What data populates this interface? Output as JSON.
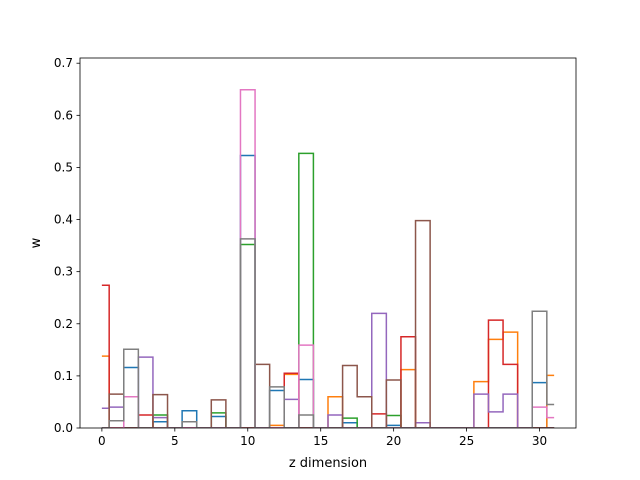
{
  "chart_data": {
    "type": "line",
    "drawstyle": "steps-mid",
    "title": "",
    "xlabel": "z dimension",
    "ylabel": "w",
    "xlim": [
      -1.5,
      32.5
    ],
    "ylim": [
      0,
      0.71
    ],
    "xticks": [
      0,
      5,
      10,
      15,
      20,
      25,
      30
    ],
    "yticks": [
      0.0,
      0.1,
      0.2,
      0.3,
      0.4,
      0.5,
      0.6,
      0.7
    ],
    "x": [
      0,
      1,
      2,
      3,
      4,
      5,
      6,
      7,
      8,
      9,
      10,
      11,
      12,
      13,
      14,
      15,
      16,
      17,
      18,
      19,
      20,
      21,
      22,
      23,
      24,
      25,
      26,
      27,
      28,
      29,
      30,
      31
    ],
    "series": [
      {
        "color": "#1f77b4",
        "values": [
          0.0,
          0.0,
          0.116,
          0.0,
          0.012,
          0.0,
          0.033,
          0.0,
          0.022,
          0.0,
          0.523,
          0.0,
          0.072,
          0.0,
          0.093,
          0.0,
          0.0,
          0.01,
          0.0,
          0.0,
          0.005,
          0.0,
          0.0,
          0.0,
          0.0,
          0.0,
          0.0,
          0.0,
          0.0,
          0.0,
          0.087,
          0.0
        ]
      },
      {
        "color": "#ff7f0e",
        "values": [
          0.138,
          0.0,
          0.0,
          0.0,
          0.0,
          0.0,
          0.0,
          0.0,
          0.0,
          0.0,
          0.0,
          0.0,
          0.005,
          0.103,
          0.0,
          0.0,
          0.06,
          0.0,
          0.0,
          0.0,
          0.0,
          0.112,
          0.0,
          0.0,
          0.0,
          0.0,
          0.089,
          0.17,
          0.184,
          0.0,
          0.0,
          0.101
        ]
      },
      {
        "color": "#2ca02c",
        "values": [
          0.0,
          0.0,
          0.0,
          0.0,
          0.025,
          0.0,
          0.0,
          0.0,
          0.029,
          0.0,
          0.352,
          0.0,
          0.0,
          0.0,
          0.527,
          0.0,
          0.0,
          0.019,
          0.0,
          0.0,
          0.024,
          0.0,
          0.0,
          0.0,
          0.0,
          0.0,
          0.0,
          0.0,
          0.0,
          0.0,
          0.0,
          0.0
        ]
      },
      {
        "color": "#d62728",
        "values": [
          0.274,
          0.0,
          0.0,
          0.025,
          0.0,
          0.0,
          0.0,
          0.0,
          0.0,
          0.0,
          0.0,
          0.0,
          0.0,
          0.105,
          0.0,
          0.0,
          0.0,
          0.0,
          0.0,
          0.027,
          0.0,
          0.175,
          0.0,
          0.0,
          0.0,
          0.0,
          0.0,
          0.207,
          0.122,
          0.0,
          0.0,
          0.0
        ]
      },
      {
        "color": "#9467bd",
        "values": [
          0.038,
          0.04,
          0.0,
          0.136,
          0.02,
          0.0,
          0.0,
          0.0,
          0.0,
          0.0,
          0.0,
          0.0,
          0.0,
          0.055,
          0.0,
          0.0,
          0.025,
          0.0,
          0.0,
          0.22,
          0.0,
          0.0,
          0.01,
          0.0,
          0.0,
          0.0,
          0.065,
          0.031,
          0.065,
          0.0,
          0.0,
          0.0
        ]
      },
      {
        "color": "#8c564b",
        "values": [
          0.0,
          0.065,
          0.0,
          0.0,
          0.064,
          0.0,
          0.0,
          0.0,
          0.054,
          0.0,
          0.0,
          0.122,
          0.0,
          0.0,
          0.0,
          0.0,
          0.0,
          0.12,
          0.06,
          0.0,
          0.092,
          0.0,
          0.398,
          0.0,
          0.0,
          0.0,
          0.0,
          0.0,
          0.0,
          0.0,
          0.0,
          0.0
        ]
      },
      {
        "color": "#e377c2",
        "values": [
          0.0,
          0.0,
          0.06,
          0.0,
          0.0,
          0.0,
          0.0,
          0.0,
          0.0,
          0.0,
          0.649,
          0.0,
          0.0,
          0.0,
          0.159,
          0.0,
          0.0,
          0.0,
          0.0,
          0.0,
          0.0,
          0.0,
          0.0,
          0.0,
          0.0,
          0.0,
          0.0,
          0.0,
          0.0,
          0.0,
          0.04,
          0.02
        ]
      },
      {
        "color": "#7f7f7f",
        "values": [
          0.0,
          0.014,
          0.151,
          0.0,
          0.0,
          0.0,
          0.012,
          0.0,
          0.0,
          0.0,
          0.363,
          0.0,
          0.079,
          0.0,
          0.025,
          0.0,
          0.0,
          0.0,
          0.0,
          0.0,
          0.0,
          0.0,
          0.0,
          0.0,
          0.0,
          0.0,
          0.0,
          0.0,
          0.0,
          0.0,
          0.224,
          0.045
        ]
      }
    ]
  }
}
